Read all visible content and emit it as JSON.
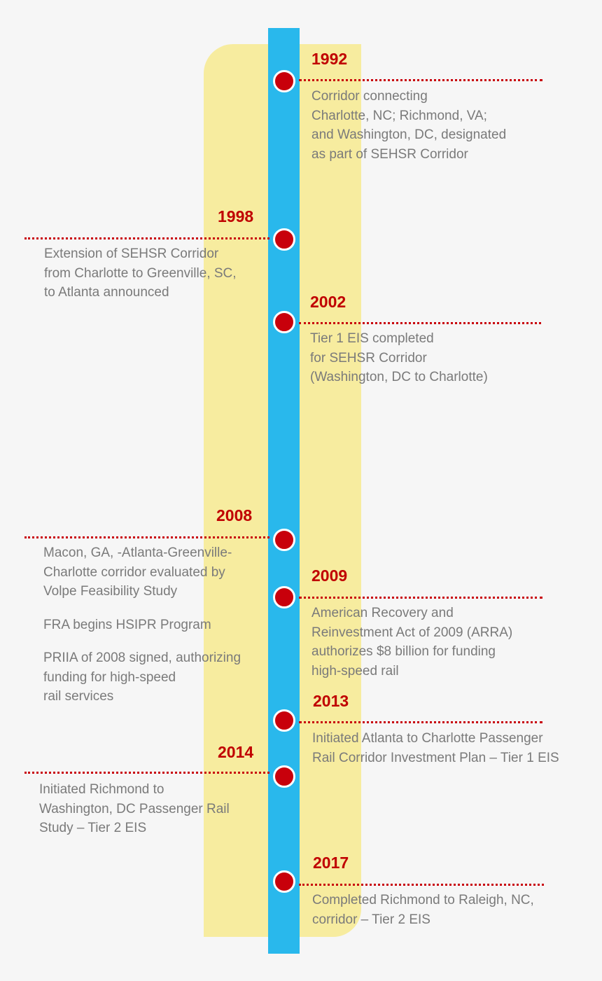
{
  "colors": {
    "background": "#f6f6f6",
    "band": "#f7ec9f",
    "rail": "#29b8ec",
    "marker": "#c8000b",
    "year": "#c00000",
    "text": "#7a7a7a"
  },
  "events": {
    "e1992": {
      "year": "1992",
      "lines": [
        "Corridor connecting",
        "Charlotte, NC; Richmond, VA;",
        "and Washington, DC, designated",
        "as part of SEHSR Corridor"
      ]
    },
    "e1998": {
      "year": "1998",
      "lines": [
        "Extension of SEHSR Corridor",
        "from Charlotte to Greenville, SC,",
        "to Atlanta announced"
      ]
    },
    "e2002": {
      "year": "2002",
      "lines": [
        "Tier 1 EIS completed",
        "for SEHSR Corridor",
        "(Washington, DC to Charlotte)"
      ]
    },
    "e2008": {
      "year": "2008",
      "paragraphs": [
        [
          "Macon, GA, -Atlanta-Greenville-",
          "Charlotte corridor evaluated by",
          "Volpe Feasibility Study"
        ],
        [
          "FRA begins HSIPR Program"
        ],
        [
          "PRIIA of 2008 signed, authorizing",
          "funding for high-speed",
          "rail services"
        ]
      ]
    },
    "e2009": {
      "year": "2009",
      "lines": [
        "American Recovery and",
        "Reinvestment Act of 2009 (ARRA)",
        "authorizes $8 billion for funding",
        "high-speed rail"
      ]
    },
    "e2013": {
      "year": "2013",
      "lines": [
        "Initiated Atlanta to Charlotte Passenger",
        "Rail Corridor Investment Plan – Tier 1 EIS"
      ]
    },
    "e2014": {
      "year": "2014",
      "lines": [
        "Initiated Richmond to",
        "Washington, DC Passenger Rail",
        "Study – Tier 2 EIS"
      ]
    },
    "e2017": {
      "year": "2017",
      "lines": [
        "Completed Richmond to Raleigh, NC,",
        "corridor – Tier 2 EIS"
      ]
    }
  }
}
